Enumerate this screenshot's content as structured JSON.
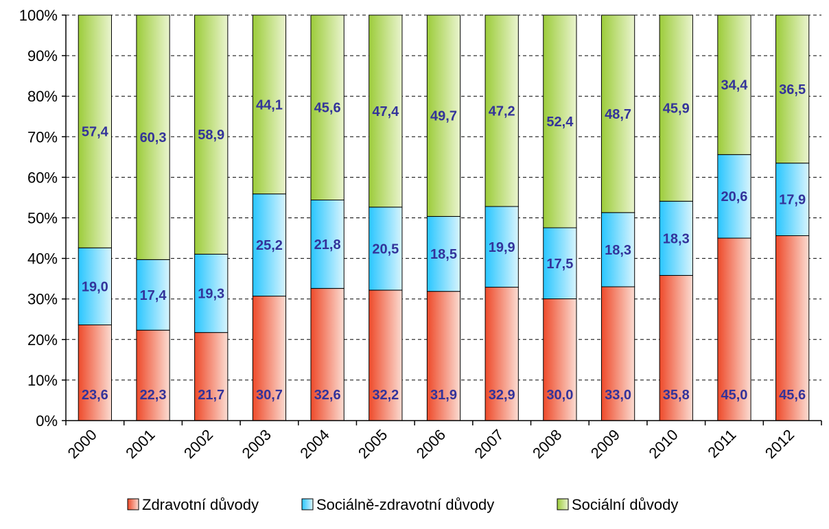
{
  "chart_data": {
    "type": "bar",
    "stacked": true,
    "percent_stacked": true,
    "categories": [
      "2000",
      "2001",
      "2002",
      "2003",
      "2004",
      "2005",
      "2006",
      "2007",
      "2008",
      "2009",
      "2010",
      "2011",
      "2012"
    ],
    "series": [
      {
        "name": "Zdravotní důvody",
        "color": "#f04e30",
        "labels": [
          "23,6",
          "22,3",
          "21,7",
          "30,7",
          "32,6",
          "32,2",
          "31,9",
          "32,9",
          "30,0",
          "33,0",
          "35,8",
          "45,0",
          "45,6"
        ],
        "values": [
          23.6,
          22.3,
          21.7,
          30.7,
          32.6,
          32.2,
          31.9,
          32.9,
          30.0,
          33.0,
          35.8,
          45.0,
          45.6
        ]
      },
      {
        "name": "Sociálně-zdravotní důvody",
        "color": "#33ccff",
        "labels": [
          "19,0",
          "17,4",
          "19,3",
          "25,2",
          "21,8",
          "20,5",
          "18,5",
          "19,9",
          "17,5",
          "18,3",
          "18,3",
          "20,6",
          "17,9"
        ],
        "values": [
          19.0,
          17.4,
          19.3,
          25.2,
          21.8,
          20.5,
          18.5,
          19.9,
          17.5,
          18.3,
          18.3,
          20.6,
          17.9
        ]
      },
      {
        "name": "Sociální důvody",
        "color": "#99cc33",
        "labels": [
          "57,4",
          "60,3",
          "58,9",
          "44,1",
          "45,6",
          "47,4",
          "49,7",
          "47,2",
          "52,4",
          "48,7",
          "45,9",
          "34,4",
          "36,5"
        ],
        "values": [
          57.4,
          60.3,
          58.9,
          44.1,
          45.6,
          47.4,
          49.7,
          47.2,
          52.4,
          48.7,
          45.9,
          34.4,
          36.5
        ]
      }
    ],
    "y_ticks": [
      "0%",
      "10%",
      "20%",
      "30%",
      "40%",
      "50%",
      "60%",
      "70%",
      "80%",
      "90%",
      "100%"
    ],
    "ylim": [
      0,
      100
    ],
    "grid": true,
    "legend_position": "bottom"
  }
}
